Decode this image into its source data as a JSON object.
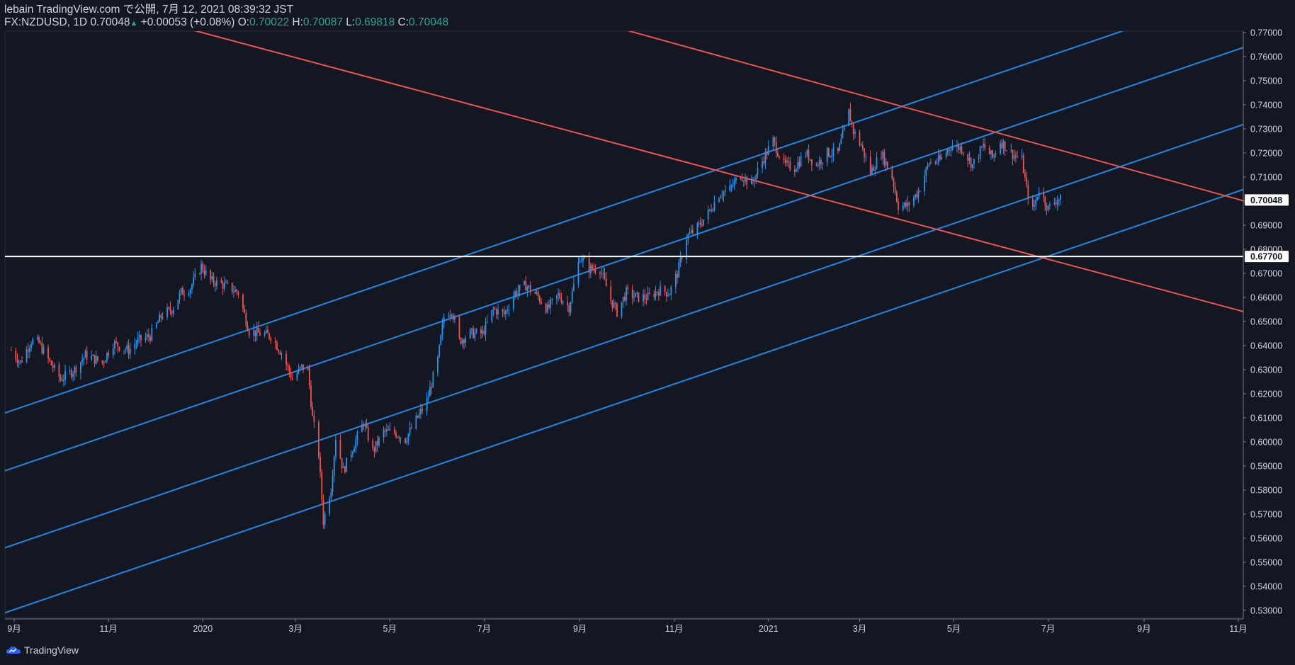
{
  "header": {
    "line1": "lebain TradingView.com で公開, 7月 12, 2021 08:39:32 JST",
    "symbol": "FX:NZDUSD, 1D",
    "last": "0.70048",
    "arrow": "▲",
    "change": "+0.00053 (+0.08%)",
    "o_label": "O:",
    "o_val": "0.70022",
    "h_label": "H:",
    "h_val": "0.70087",
    "l_label": "L:",
    "l_val": "0.69818",
    "c_label": "C:",
    "c_val": "0.70048"
  },
  "footer": {
    "brand": "TradingView",
    "icon": "tradingview-cloud-icon"
  },
  "colors": {
    "background": "#131722",
    "up": "#2196f3",
    "down": "#ef5350",
    "channel_blue": "#1e88e5",
    "channel_red": "#ef5350",
    "support": "#ffffff",
    "axis_text": "#d1d4dc"
  },
  "chart_data": {
    "type": "candlestick",
    "title": "FX:NZDUSD, 1D",
    "y_ticks": [
      "0.77000",
      "0.76000",
      "0.75000",
      "0.74000",
      "0.73000",
      "0.72000",
      "0.71000",
      "0.70000",
      "0.69000",
      "0.68000",
      "0.67000",
      "0.66000",
      "0.65000",
      "0.64000",
      "0.63000",
      "0.62000",
      "0.61000",
      "0.60000",
      "0.59000",
      "0.58000",
      "0.57000",
      "0.56000",
      "0.55000",
      "0.54000",
      "0.53000"
    ],
    "ylim": [
      0.527,
      0.7706
    ],
    "x_ticks": [
      "9月",
      "11月",
      "2020",
      "3月",
      "5月",
      "7月",
      "9月",
      "11月",
      "2021",
      "3月",
      "5月",
      "7月",
      "9月",
      "11月"
    ],
    "x_tick_dates": [
      "2019-09-01",
      "2019-11-01",
      "2020-01-01",
      "2020-03-01",
      "2020-05-01",
      "2020-07-01",
      "2020-09-01",
      "2020-11-01",
      "2021-01-01",
      "2021-03-01",
      "2021-05-01",
      "2021-07-01",
      "2021-09-01",
      "2021-11-01"
    ],
    "last_price_label": "0.70048",
    "horizontal_line": {
      "value": 0.677,
      "label": "0.67700"
    },
    "close_points": [
      [
        "2019-08-30",
        0.638
      ],
      [
        "2019-09-05",
        0.633
      ],
      [
        "2019-09-12",
        0.642
      ],
      [
        "2019-09-17",
        0.641
      ],
      [
        "2019-09-24",
        0.633
      ],
      [
        "2019-10-01",
        0.626
      ],
      [
        "2019-10-10",
        0.63
      ],
      [
        "2019-10-17",
        0.636
      ],
      [
        "2019-10-28",
        0.633
      ],
      [
        "2019-11-04",
        0.641
      ],
      [
        "2019-11-14",
        0.638
      ],
      [
        "2019-11-20",
        0.642
      ],
      [
        "2019-11-28",
        0.644
      ],
      [
        "2019-12-06",
        0.653
      ],
      [
        "2019-12-12",
        0.655
      ],
      [
        "2019-12-18",
        0.662
      ],
      [
        "2019-12-24",
        0.664
      ],
      [
        "2019-12-31",
        0.673
      ],
      [
        "2020-01-06",
        0.667
      ],
      [
        "2020-01-15",
        0.665
      ],
      [
        "2020-01-24",
        0.662
      ],
      [
        "2020-01-31",
        0.646
      ],
      [
        "2020-02-07",
        0.645
      ],
      [
        "2020-02-14",
        0.644
      ],
      [
        "2020-02-21",
        0.637
      ],
      [
        "2020-02-28",
        0.626
      ],
      [
        "2020-03-05",
        0.631
      ],
      [
        "2020-03-09",
        0.63
      ],
      [
        "2020-03-12",
        0.61
      ],
      [
        "2020-03-16",
        0.595
      ],
      [
        "2020-03-19",
        0.567
      ],
      [
        "2020-03-24",
        0.581
      ],
      [
        "2020-03-27",
        0.602
      ],
      [
        "2020-04-01",
        0.588
      ],
      [
        "2020-04-06",
        0.596
      ],
      [
        "2020-04-14",
        0.608
      ],
      [
        "2020-04-20",
        0.596
      ],
      [
        "2020-04-27",
        0.604
      ],
      [
        "2020-05-04",
        0.604
      ],
      [
        "2020-05-11",
        0.601
      ],
      [
        "2020-05-18",
        0.609
      ],
      [
        "2020-05-25",
        0.617
      ],
      [
        "2020-06-01",
        0.634
      ],
      [
        "2020-06-05",
        0.652
      ],
      [
        "2020-06-10",
        0.655
      ],
      [
        "2020-06-15",
        0.642
      ],
      [
        "2020-06-22",
        0.645
      ],
      [
        "2020-06-30",
        0.645
      ],
      [
        "2020-07-07",
        0.655
      ],
      [
        "2020-07-14",
        0.653
      ],
      [
        "2020-07-21",
        0.662
      ],
      [
        "2020-07-28",
        0.665
      ],
      [
        "2020-08-04",
        0.661
      ],
      [
        "2020-08-11",
        0.655
      ],
      [
        "2020-08-18",
        0.661
      ],
      [
        "2020-08-25",
        0.656
      ],
      [
        "2020-09-01",
        0.677
      ],
      [
        "2020-09-07",
        0.672
      ],
      [
        "2020-09-14",
        0.672
      ],
      [
        "2020-09-21",
        0.659
      ],
      [
        "2020-09-25",
        0.654
      ],
      [
        "2020-10-01",
        0.662
      ],
      [
        "2020-10-08",
        0.66
      ],
      [
        "2020-10-15",
        0.66
      ],
      [
        "2020-10-22",
        0.663
      ],
      [
        "2020-10-29",
        0.662
      ],
      [
        "2020-11-03",
        0.67
      ],
      [
        "2020-11-09",
        0.685
      ],
      [
        "2020-11-16",
        0.689
      ],
      [
        "2020-11-23",
        0.695
      ],
      [
        "2020-11-30",
        0.703
      ],
      [
        "2020-12-07",
        0.705
      ],
      [
        "2020-12-14",
        0.711
      ],
      [
        "2020-12-21",
        0.707
      ],
      [
        "2020-12-29",
        0.718
      ],
      [
        "2021-01-04",
        0.725
      ],
      [
        "2021-01-11",
        0.715
      ],
      [
        "2021-01-18",
        0.714
      ],
      [
        "2021-01-25",
        0.72
      ],
      [
        "2021-02-01",
        0.715
      ],
      [
        "2021-02-08",
        0.72
      ],
      [
        "2021-02-15",
        0.72
      ],
      [
        "2021-02-22",
        0.737
      ],
      [
        "2021-02-25",
        0.729
      ],
      [
        "2021-03-02",
        0.723
      ],
      [
        "2021-03-08",
        0.712
      ],
      [
        "2021-03-15",
        0.72
      ],
      [
        "2021-03-22",
        0.71
      ],
      [
        "2021-03-26",
        0.698
      ],
      [
        "2021-04-01",
        0.698
      ],
      [
        "2021-04-08",
        0.704
      ],
      [
        "2021-04-15",
        0.716
      ],
      [
        "2021-04-22",
        0.717
      ],
      [
        "2021-04-29",
        0.723
      ],
      [
        "2021-05-06",
        0.722
      ],
      [
        "2021-05-13",
        0.715
      ],
      [
        "2021-05-20",
        0.723
      ],
      [
        "2021-05-26",
        0.718
      ],
      [
        "2021-05-31",
        0.725
      ],
      [
        "2021-06-07",
        0.72
      ],
      [
        "2021-06-14",
        0.717
      ],
      [
        "2021-06-17",
        0.705
      ],
      [
        "2021-06-21",
        0.696
      ],
      [
        "2021-06-25",
        0.705
      ],
      [
        "2021-07-01",
        0.697
      ],
      [
        "2021-07-07",
        0.701
      ],
      [
        "2021-07-09",
        0.7005
      ]
    ],
    "trend_lines": [
      {
        "color": "blue",
        "from": [
          "2019-08-26",
          0.612
        ],
        "to": [
          "2021-11-05",
          0.788
        ]
      },
      {
        "color": "blue",
        "from": [
          "2019-08-26",
          0.588
        ],
        "to": [
          "2021-11-05",
          0.764
        ]
      },
      {
        "color": "blue",
        "from": [
          "2019-08-26",
          0.556
        ],
        "to": [
          "2021-11-05",
          0.732
        ]
      },
      {
        "color": "blue",
        "from": [
          "2019-08-26",
          0.529
        ],
        "to": [
          "2021-11-05",
          0.705
        ]
      },
      {
        "color": "red",
        "from": [
          "2019-12-20",
          0.772
        ],
        "to": [
          "2021-11-05",
          0.654
        ]
      },
      {
        "color": "red",
        "from": [
          "2020-10-01",
          0.771
        ],
        "to": [
          "2021-11-05",
          0.7
        ]
      }
    ]
  }
}
